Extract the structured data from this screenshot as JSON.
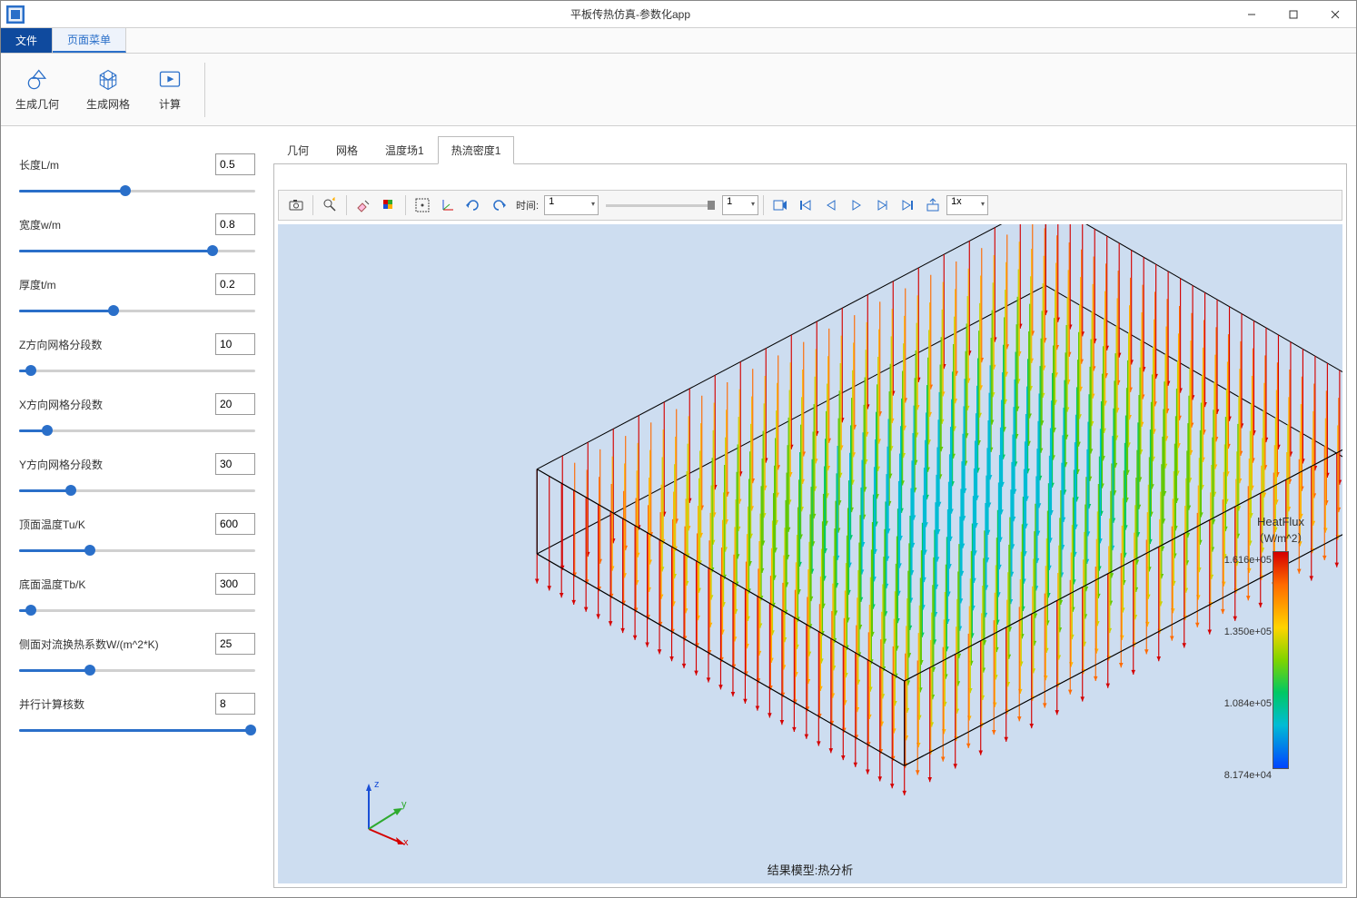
{
  "window": {
    "title": "平板传热仿真-参数化app"
  },
  "menu": {
    "file": "文件",
    "page": "页面菜单"
  },
  "ribbon": {
    "gen_geom": "生成几何",
    "gen_mesh": "生成网格",
    "compute": "计算"
  },
  "params": [
    {
      "label": "长度L/m",
      "value": "0.5",
      "pct": 45
    },
    {
      "label": "宽度w/m",
      "value": "0.8",
      "pct": 82
    },
    {
      "label": "厚度t/m",
      "value": "0.2",
      "pct": 40
    },
    {
      "label": "Z方向网格分段数",
      "value": "10",
      "pct": 5
    },
    {
      "label": "X方向网格分段数",
      "value": "20",
      "pct": 12
    },
    {
      "label": "Y方向网格分段数",
      "value": "30",
      "pct": 22
    },
    {
      "label": "顶面温度Tu/K",
      "value": "600",
      "pct": 30
    },
    {
      "label": "底面温度Tb/K",
      "value": "300",
      "pct": 5
    },
    {
      "label": "侧面对流换热系数W/(m^2*K)",
      "value": "25",
      "pct": 30
    },
    {
      "label": "并行计算核数",
      "value": "8",
      "pct": 98
    }
  ],
  "tabs": {
    "items": [
      "几何",
      "网格",
      "温度场1",
      "热流密度1"
    ],
    "active": 3
  },
  "toolbar": {
    "time_label": "时间:",
    "time_value": "1",
    "frame_value": "1",
    "speed_value": "1x"
  },
  "legend": {
    "title": "HeatFlux",
    "units": "（W/m^2）",
    "ticks": [
      {
        "label": "1.616e+05",
        "pos": 0
      },
      {
        "label": "1.350e+05",
        "pos": 79
      },
      {
        "label": "1.084e+05",
        "pos": 158
      },
      {
        "label": "8.174e+04",
        "pos": 237
      }
    ]
  },
  "viewer": {
    "background": "#cdddf0",
    "box_edges": "#000000",
    "footer": "结果模型:热分析",
    "axes": {
      "x": {
        "label": "x",
        "color": "#d40000"
      },
      "y": {
        "label": "y",
        "color": "#2eaa2e"
      },
      "z": {
        "label": "z",
        "color": "#1a4fd6"
      }
    },
    "arrow_palette": [
      "#d40000",
      "#ff6a00",
      "#ffb000",
      "#c8d400",
      "#60c800",
      "#00c864",
      "#00bcd4",
      "#0066ff"
    ]
  }
}
